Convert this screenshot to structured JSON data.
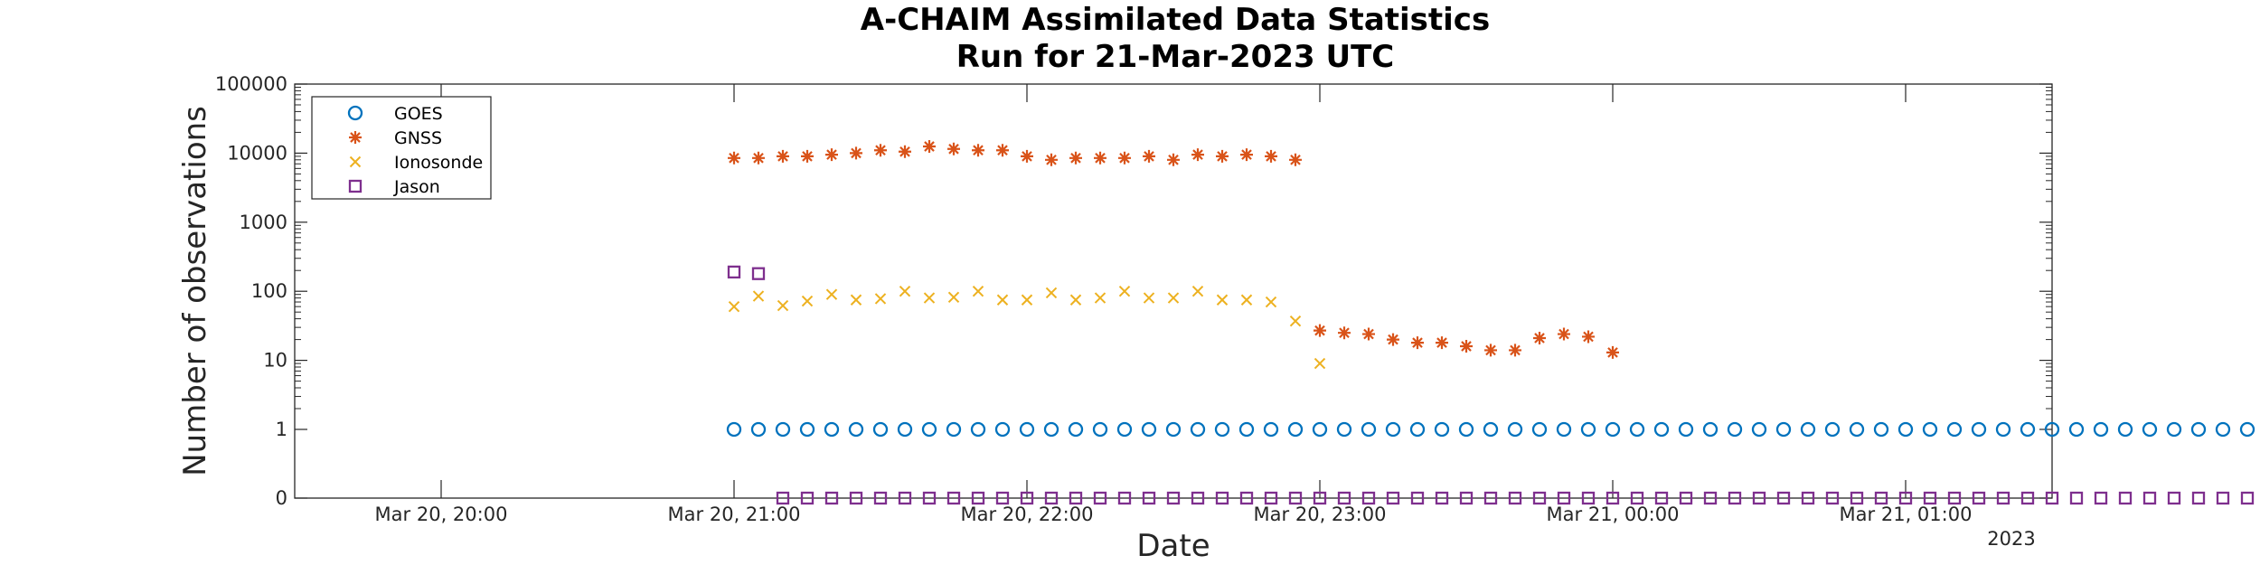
{
  "chart_data": {
    "type": "scatter",
    "title": [
      "A-CHAIM Assimilated Data Statistics",
      "Run for 21-Mar-2023 UTC"
    ],
    "xlabel": "Date",
    "ylabel": "Number of observations",
    "x_axis": {
      "unit": "date-time",
      "range": [
        "2023-03-20T19:30",
        "2023-03-21T01:30"
      ],
      "ticks": [
        "2023-03-20T20:00",
        "2023-03-20T21:00",
        "2023-03-20T22:00",
        "2023-03-20T23:00",
        "2023-03-21T00:00",
        "2023-03-21T01:00"
      ],
      "tick_labels": [
        "Mar 20, 20:00",
        "Mar 20, 21:00",
        "Mar 20, 22:00",
        "Mar 20, 23:00",
        "Mar 21, 00:00",
        "Mar 21, 01:00"
      ],
      "secondary_label": "2023"
    },
    "y_axis": {
      "scale": "log",
      "range": [
        0,
        100000
      ],
      "ticks": [
        0,
        1,
        10,
        100,
        1000,
        10000,
        100000
      ],
      "tick_labels": [
        "0",
        "1",
        "10",
        "100",
        "1000",
        "10000",
        "100000"
      ]
    },
    "grid": false,
    "legend": {
      "placement": "top-left",
      "entries": [
        "GOES",
        "GNSS",
        "Ionosonde",
        "Jason"
      ]
    },
    "series": [
      {
        "name": "GOES",
        "marker": "circle",
        "color": "#0072BD",
        "start": "2023-03-20T21:00",
        "step_minutes": 5,
        "values": [
          1,
          1,
          1,
          1,
          1,
          1,
          1,
          1,
          1,
          1,
          1,
          1,
          1,
          1,
          1,
          1,
          1,
          1,
          1,
          1,
          1,
          1,
          1,
          1,
          1,
          1,
          1,
          1,
          1,
          1,
          1,
          1,
          1,
          1,
          1,
          1,
          1,
          1,
          1,
          1,
          1,
          1,
          1,
          1,
          1,
          1,
          1,
          1,
          1,
          1,
          1,
          1,
          1,
          1,
          1,
          1,
          1,
          1,
          1,
          1,
          1,
          1,
          1,
          1,
          1
        ]
      },
      {
        "name": "GNSS",
        "marker": "asterisk",
        "color": "#D95319",
        "start": "2023-03-20T21:00",
        "step_minutes": 5,
        "values": [
          8500,
          8500,
          9000,
          9000,
          9500,
          10000,
          11000,
          10500,
          12500,
          11500,
          11000,
          11000,
          9000,
          8000,
          8500,
          8500,
          8500,
          9000,
          8000,
          9500,
          9000,
          9500,
          9000,
          8000,
          27,
          25,
          24,
          20,
          18,
          18,
          16,
          14,
          14,
          21,
          24,
          22,
          13
        ]
      },
      {
        "name": "Ionosonde",
        "marker": "x",
        "color": "#EDB120",
        "start": "2023-03-20T21:00",
        "step_minutes": 5,
        "values": [
          60,
          85,
          62,
          72,
          90,
          75,
          78,
          100,
          80,
          82,
          100,
          75,
          75,
          95,
          75,
          80,
          100,
          80,
          80,
          100,
          75,
          75,
          70,
          37,
          9
        ]
      },
      {
        "name": "Jason",
        "marker": "square",
        "color": "#7E2F8E",
        "points": [
          {
            "x": "2023-03-20T21:00",
            "y": 190
          },
          {
            "x": "2023-03-20T21:05",
            "y": 180
          }
        ],
        "zero_points": {
          "start": "2023-03-20T21:10",
          "step_minutes": 5,
          "count": 63,
          "value": 0
        }
      }
    ]
  }
}
